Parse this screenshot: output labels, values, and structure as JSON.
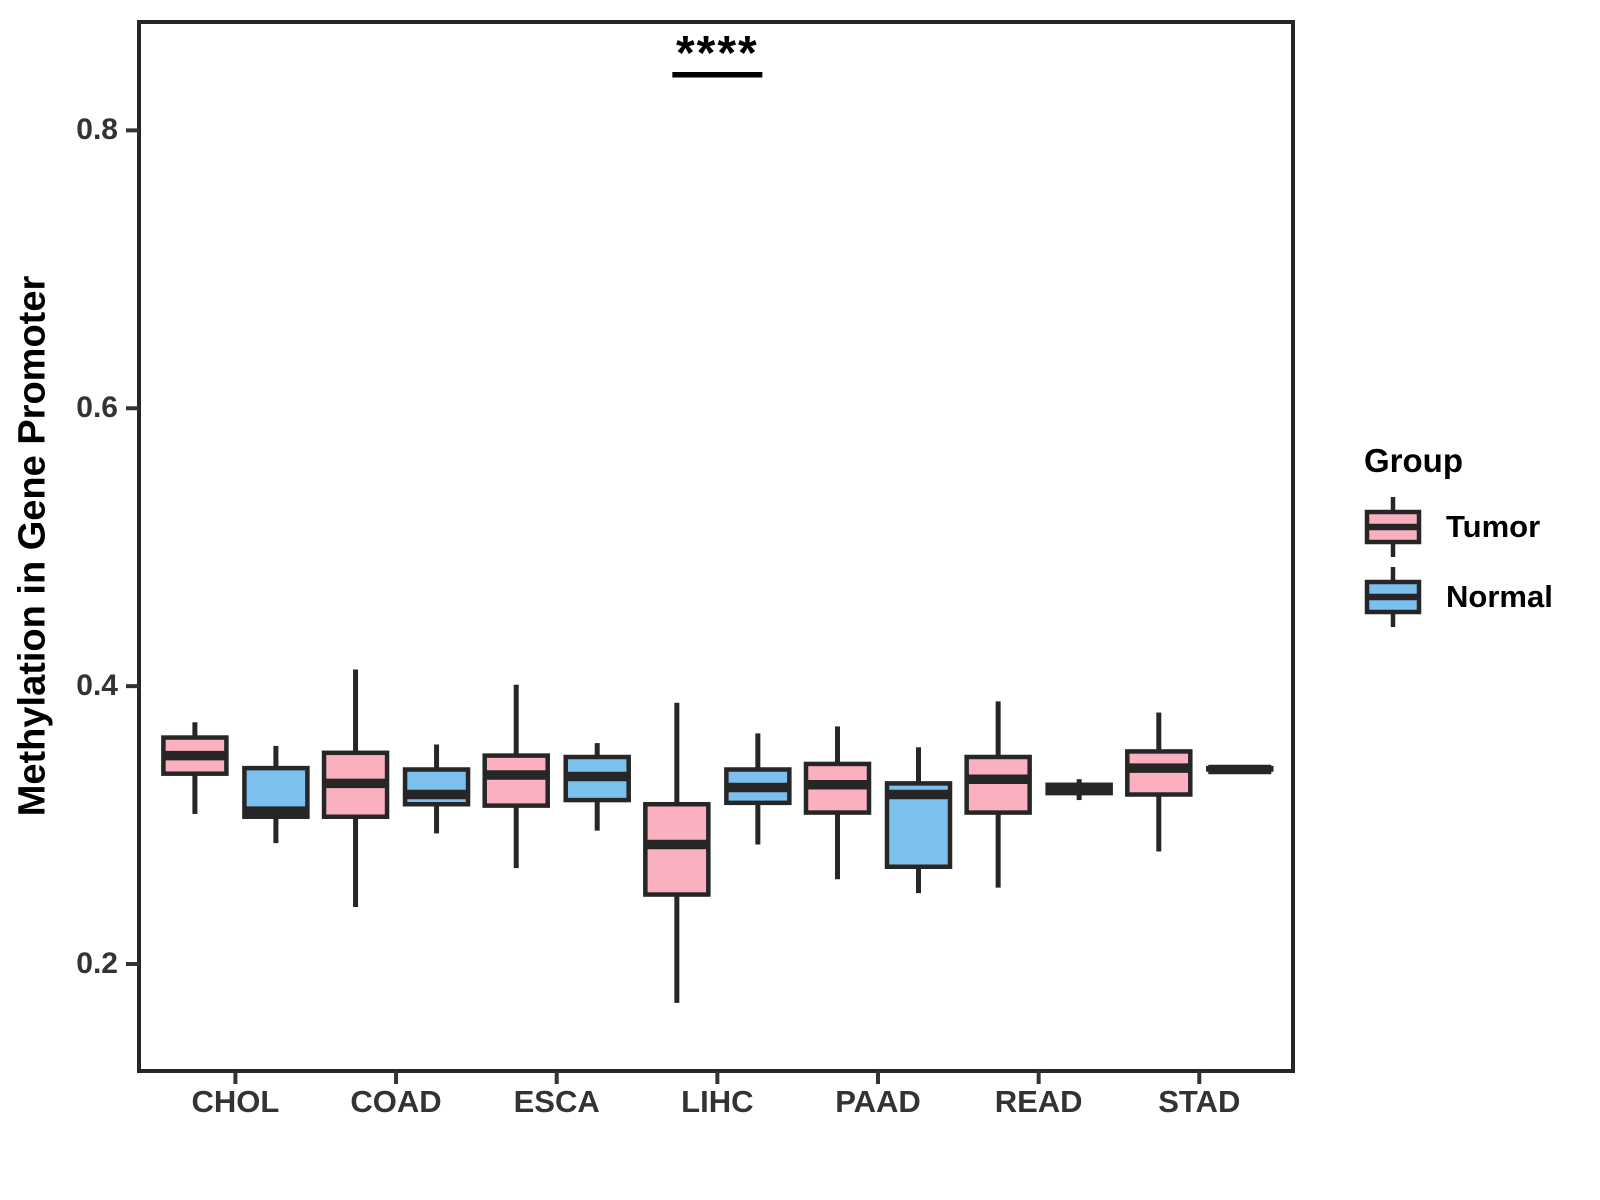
{
  "chart_data": {
    "type": "boxplot",
    "ylabel": "Methylation in Gene Promoter",
    "legend_title": "Group",
    "legend_position": "right",
    "grid": false,
    "categories": [
      "CHOL",
      "COAD",
      "ESCA",
      "LIHC",
      "PAAD",
      "READ",
      "STAD"
    ],
    "yticks": [
      0.2,
      0.4,
      0.6,
      0.8
    ],
    "ytick_labels": [
      "0.2",
      "0.4",
      "0.6",
      "0.8"
    ],
    "ylim": [
      0.123,
      0.878
    ],
    "annotations": [
      {
        "label": "****",
        "category": "LIHC",
        "line_y": 0.84
      }
    ],
    "series": [
      {
        "name": "Tumor",
        "color": "#FBB0C0",
        "boxes": [
          {
            "category": "CHOL",
            "whisker_low": 0.308,
            "q1": 0.337,
            "median": 0.35,
            "q3": 0.363,
            "whisker_high": 0.374
          },
          {
            "category": "COAD",
            "whisker_low": 0.241,
            "q1": 0.306,
            "median": 0.33,
            "q3": 0.352,
            "whisker_high": 0.412
          },
          {
            "category": "ESCA",
            "whisker_low": 0.269,
            "q1": 0.314,
            "median": 0.336,
            "q3": 0.35,
            "whisker_high": 0.401
          },
          {
            "category": "LIHC",
            "whisker_low": 0.172,
            "q1": 0.25,
            "median": 0.286,
            "q3": 0.315,
            "whisker_high": 0.388
          },
          {
            "category": "PAAD",
            "whisker_low": 0.261,
            "q1": 0.309,
            "median": 0.329,
            "q3": 0.344,
            "whisker_high": 0.371
          },
          {
            "category": "READ",
            "whisker_low": 0.255,
            "q1": 0.309,
            "median": 0.333,
            "q3": 0.349,
            "whisker_high": 0.389
          },
          {
            "category": "STAD",
            "whisker_low": 0.281,
            "q1": 0.322,
            "median": 0.341,
            "q3": 0.353,
            "whisker_high": 0.381
          }
        ]
      },
      {
        "name": "Normal",
        "color": "#7CC0EE",
        "boxes": [
          {
            "category": "CHOL",
            "whisker_low": 0.287,
            "q1": 0.306,
            "median": 0.31,
            "q3": 0.341,
            "whisker_high": 0.357
          },
          {
            "category": "COAD",
            "whisker_low": 0.294,
            "q1": 0.315,
            "median": 0.322,
            "q3": 0.34,
            "whisker_high": 0.358
          },
          {
            "category": "ESCA",
            "whisker_low": 0.296,
            "q1": 0.318,
            "median": 0.335,
            "q3": 0.349,
            "whisker_high": 0.359
          },
          {
            "category": "LIHC",
            "whisker_low": 0.286,
            "q1": 0.316,
            "median": 0.327,
            "q3": 0.34,
            "whisker_high": 0.366
          },
          {
            "category": "PAAD",
            "whisker_low": 0.251,
            "q1": 0.27,
            "median": 0.322,
            "q3": 0.33,
            "whisker_high": 0.356
          },
          {
            "category": "READ",
            "whisker_low": 0.318,
            "q1": 0.323,
            "median": 0.326,
            "q3": 0.329,
            "whisker_high": 0.333
          },
          {
            "category": "STAD",
            "whisker_low": 0.34,
            "q1": 0.34,
            "median": 0.34,
            "q3": 0.341,
            "whisker_high": 0.341
          }
        ]
      }
    ],
    "style": {
      "box_outline": "#262626",
      "tick_color": "#333333",
      "tick_label_color": "#333333",
      "axis_title_color": "#000000"
    }
  }
}
